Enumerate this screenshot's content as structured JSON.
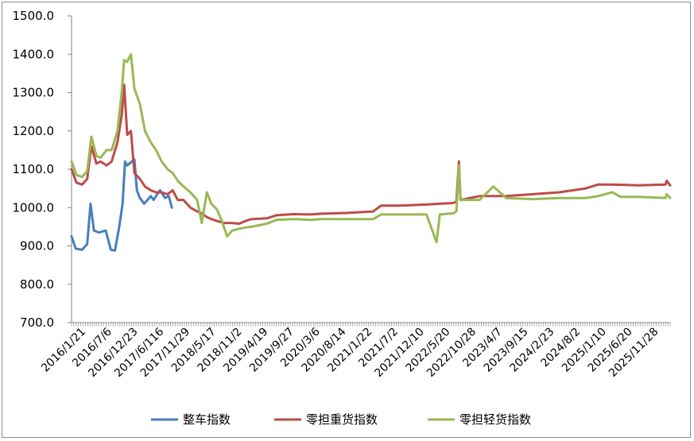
{
  "chart_data": {
    "type": "line",
    "title": "",
    "xlabel": "",
    "ylabel": "",
    "ylim": [
      700,
      1500
    ],
    "yticks": [
      "700.0",
      "800.0",
      "900.0",
      "1000.0",
      "1100.0",
      "1200.0",
      "1300.0",
      "1400.0",
      "1500.0"
    ],
    "xticks": [
      "2016/1/21",
      "2016/7/6",
      "2016/12/23",
      "2017/6/116",
      "2017/11/29",
      "2018/5/17",
      "2018/11/2",
      "2019/4/19",
      "2019/9/27",
      "2020/3/6",
      "2020/8/14",
      "2021/1/22",
      "2021/7/2",
      "2021/12/10",
      "2022/5/20",
      "2022/10/28",
      "2023/4/7",
      "2023/9/15",
      "2024/2/23",
      "2024/8/2",
      "2025/1/10",
      "2025/6/20",
      "2025/11/28"
    ],
    "x_start": "2016-01-21",
    "x_end": "2025-12-26",
    "grid": false,
    "legend_position": "bottom",
    "series": [
      {
        "name": "整车指数",
        "color": "#4a7ebb",
        "points": [
          [
            "2016-01-21",
            925
          ],
          [
            "2016-02-15",
            893
          ],
          [
            "2016-03-25",
            890
          ],
          [
            "2016-04-25",
            905
          ],
          [
            "2016-05-15",
            1010
          ],
          [
            "2016-06-05",
            940
          ],
          [
            "2016-07-06",
            935
          ],
          [
            "2016-08-15",
            940
          ],
          [
            "2016-09-15",
            890
          ],
          [
            "2016-10-10",
            888
          ],
          [
            "2016-11-05",
            950
          ],
          [
            "2016-11-25",
            1010
          ],
          [
            "2016-12-10",
            1120
          ],
          [
            "2016-12-23",
            1110
          ],
          [
            "2017-01-20",
            1120
          ],
          [
            "2017-02-05",
            1125
          ],
          [
            "2017-02-20",
            1045
          ],
          [
            "2017-03-10",
            1025
          ],
          [
            "2017-04-05",
            1010
          ],
          [
            "2017-04-25",
            1020
          ],
          [
            "2017-05-15",
            1030
          ],
          [
            "2017-06-01",
            1020
          ],
          [
            "2017-06-16",
            1030
          ],
          [
            "2017-07-10",
            1045
          ],
          [
            "2017-08-10",
            1025
          ],
          [
            "2017-09-01",
            1030
          ],
          [
            "2017-09-20",
            1000
          ]
        ]
      },
      {
        "name": "零担重货指数",
        "color": "#be4b48",
        "points": [
          [
            "2016-01-21",
            1100
          ],
          [
            "2016-02-20",
            1065
          ],
          [
            "2016-03-25",
            1060
          ],
          [
            "2016-04-25",
            1075
          ],
          [
            "2016-05-20",
            1160
          ],
          [
            "2016-06-20",
            1115
          ],
          [
            "2016-07-15",
            1120
          ],
          [
            "2016-08-20",
            1110
          ],
          [
            "2016-09-20",
            1120
          ],
          [
            "2016-10-25",
            1170
          ],
          [
            "2016-11-20",
            1240
          ],
          [
            "2016-12-05",
            1320
          ],
          [
            "2016-12-23",
            1190
          ],
          [
            "2017-01-15",
            1200
          ],
          [
            "2017-02-05",
            1090
          ],
          [
            "2017-03-10",
            1075
          ],
          [
            "2017-04-10",
            1055
          ],
          [
            "2017-05-15",
            1045
          ],
          [
            "2017-06-16",
            1040
          ],
          [
            "2017-07-20",
            1040
          ],
          [
            "2017-08-25",
            1035
          ],
          [
            "2017-09-25",
            1045
          ],
          [
            "2017-10-25",
            1020
          ],
          [
            "2017-11-29",
            1020
          ],
          [
            "2018-01-10",
            1000
          ],
          [
            "2018-02-20",
            990
          ],
          [
            "2018-03-20",
            985
          ],
          [
            "2018-04-20",
            975
          ],
          [
            "2018-05-17",
            970
          ],
          [
            "2018-06-20",
            965
          ],
          [
            "2018-08-01",
            960
          ],
          [
            "2018-09-15",
            960
          ],
          [
            "2018-11-02",
            958
          ],
          [
            "2018-12-10",
            965
          ],
          [
            "2019-01-15",
            970
          ],
          [
            "2019-04-19",
            972
          ],
          [
            "2019-06-15",
            980
          ],
          [
            "2019-09-27",
            983
          ],
          [
            "2020-01-10",
            982
          ],
          [
            "2020-03-06",
            984
          ],
          [
            "2020-08-14",
            986
          ],
          [
            "2021-01-22",
            990
          ],
          [
            "2021-03-10",
            1005
          ],
          [
            "2021-07-02",
            1005
          ],
          [
            "2021-12-10",
            1008
          ],
          [
            "2022-03-01",
            1010
          ],
          [
            "2022-05-20",
            1012
          ],
          [
            "2022-06-10",
            1015
          ],
          [
            "2022-06-25",
            1120
          ],
          [
            "2022-07-05",
            1020
          ],
          [
            "2022-10-28",
            1030
          ],
          [
            "2023-04-07",
            1030
          ],
          [
            "2023-09-15",
            1035
          ],
          [
            "2024-02-23",
            1040
          ],
          [
            "2024-08-02",
            1050
          ],
          [
            "2024-10-15",
            1060
          ],
          [
            "2025-01-10",
            1060
          ],
          [
            "2025-06-20",
            1058
          ],
          [
            "2025-11-28",
            1060
          ],
          [
            "2025-12-05",
            1070
          ],
          [
            "2025-12-26",
            1058
          ]
        ]
      },
      {
        "name": "零担轻货指数",
        "color": "#98b954",
        "points": [
          [
            "2016-01-21",
            1120
          ],
          [
            "2016-02-20",
            1085
          ],
          [
            "2016-03-25",
            1080
          ],
          [
            "2016-04-25",
            1095
          ],
          [
            "2016-05-20",
            1185
          ],
          [
            "2016-06-20",
            1135
          ],
          [
            "2016-07-15",
            1130
          ],
          [
            "2016-08-20",
            1150
          ],
          [
            "2016-09-20",
            1150
          ],
          [
            "2016-10-25",
            1200
          ],
          [
            "2016-11-20",
            1300
          ],
          [
            "2016-12-05",
            1385
          ],
          [
            "2016-12-23",
            1380
          ],
          [
            "2017-01-15",
            1400
          ],
          [
            "2017-02-05",
            1310
          ],
          [
            "2017-03-10",
            1270
          ],
          [
            "2017-04-10",
            1200
          ],
          [
            "2017-05-15",
            1170
          ],
          [
            "2017-06-16",
            1150
          ],
          [
            "2017-07-20",
            1120
          ],
          [
            "2017-08-25",
            1100
          ],
          [
            "2017-09-25",
            1090
          ],
          [
            "2017-10-25",
            1070
          ],
          [
            "2017-11-29",
            1055
          ],
          [
            "2018-01-10",
            1040
          ],
          [
            "2018-02-20",
            1020
          ],
          [
            "2018-03-20",
            960
          ],
          [
            "2018-04-20",
            1040
          ],
          [
            "2018-05-17",
            1010
          ],
          [
            "2018-06-20",
            995
          ],
          [
            "2018-07-20",
            965
          ],
          [
            "2018-08-20",
            925
          ],
          [
            "2018-09-20",
            940
          ],
          [
            "2018-11-02",
            945
          ],
          [
            "2018-12-10",
            948
          ],
          [
            "2019-01-15",
            950
          ],
          [
            "2019-04-19",
            958
          ],
          [
            "2019-06-15",
            968
          ],
          [
            "2019-09-27",
            970
          ],
          [
            "2020-01-10",
            968
          ],
          [
            "2020-03-06",
            970
          ],
          [
            "2020-08-14",
            970
          ],
          [
            "2021-01-22",
            970
          ],
          [
            "2021-03-10",
            982
          ],
          [
            "2021-07-02",
            982
          ],
          [
            "2021-12-10",
            982
          ],
          [
            "2022-02-10",
            910
          ],
          [
            "2022-03-01",
            982
          ],
          [
            "2022-05-20",
            985
          ],
          [
            "2022-06-10",
            990
          ],
          [
            "2022-06-25",
            1110
          ],
          [
            "2022-07-05",
            1020
          ],
          [
            "2022-10-28",
            1020
          ],
          [
            "2023-01-20",
            1055
          ],
          [
            "2023-04-07",
            1025
          ],
          [
            "2023-09-15",
            1022
          ],
          [
            "2024-02-23",
            1025
          ],
          [
            "2024-08-02",
            1025
          ],
          [
            "2024-10-15",
            1030
          ],
          [
            "2025-01-10",
            1040
          ],
          [
            "2025-03-01",
            1028
          ],
          [
            "2025-06-20",
            1028
          ],
          [
            "2025-11-28",
            1025
          ],
          [
            "2025-12-05",
            1035
          ],
          [
            "2025-12-26",
            1025
          ]
        ]
      }
    ]
  }
}
